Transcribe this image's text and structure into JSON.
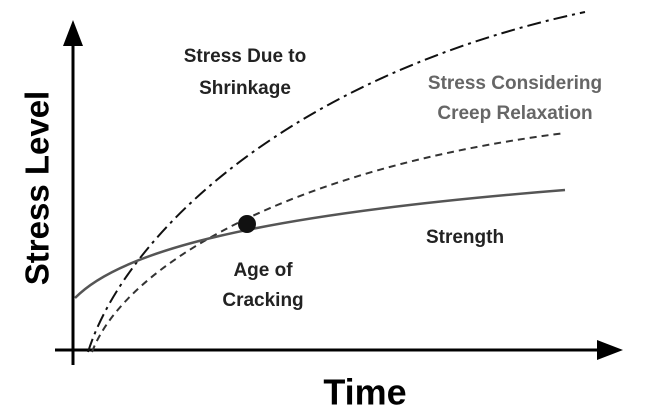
{
  "axes": {
    "y_label": "Stress Level",
    "x_label": "Time"
  },
  "labels": {
    "shrinkage": [
      "Stress Due to",
      "Shrinkage"
    ],
    "creep": [
      "Stress Considering",
      "Creep Relaxation"
    ],
    "strength": [
      "Strength"
    ],
    "cracking": [
      "Age of",
      "Cracking"
    ]
  }
}
